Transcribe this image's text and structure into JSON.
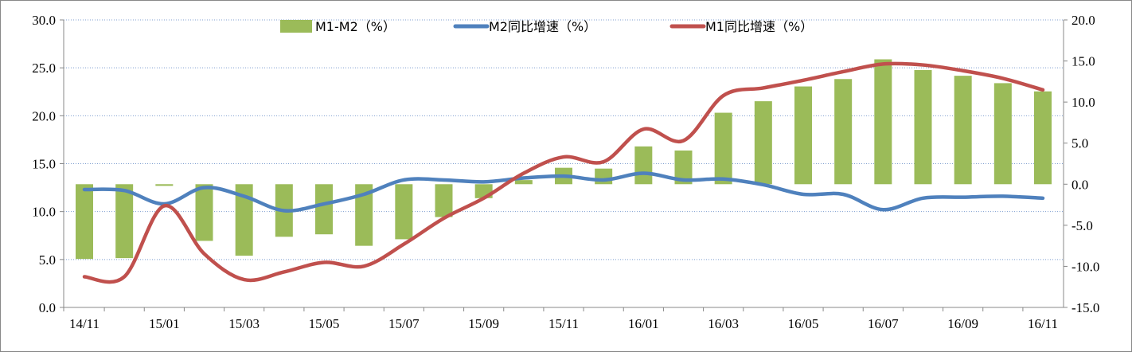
{
  "chart_data": {
    "type": "bar+line",
    "title": "",
    "categories": [
      "14/11",
      "14/12",
      "15/01",
      "15/02",
      "15/03",
      "15/04",
      "15/05",
      "15/06",
      "15/07",
      "15/08",
      "15/09",
      "15/10",
      "15/11",
      "15/12",
      "16/01",
      "16/02",
      "16/03",
      "16/04",
      "16/05",
      "16/06",
      "16/07",
      "16/08",
      "16/09",
      "16/10",
      "16/11"
    ],
    "x_tick_labels": [
      "14/11",
      "15/01",
      "15/03",
      "15/05",
      "15/07",
      "15/09",
      "15/11",
      "16/01",
      "16/03",
      "16/05",
      "16/07",
      "16/09",
      "16/11"
    ],
    "left_axis": {
      "range": [
        0,
        30
      ],
      "ticks": [
        "0.0",
        "5.0",
        "10.0",
        "15.0",
        "20.0",
        "25.0",
        "30.0"
      ]
    },
    "right_axis": {
      "range": [
        -15,
        20
      ],
      "ticks": [
        "-15.0",
        "-10.0",
        "-5.0",
        "0.0",
        "5.0",
        "10.0",
        "15.0",
        "20.0"
      ]
    },
    "grid": true,
    "legend_position": "top",
    "series": [
      {
        "name": "M1-M2（%）",
        "type": "bar",
        "axis": "right",
        "color": "#9bbb59",
        "values": [
          -9.1,
          -9.0,
          -0.2,
          -6.9,
          -8.7,
          -6.4,
          -6.1,
          -7.5,
          -6.7,
          -4.0,
          -1.7,
          0.5,
          2.0,
          1.9,
          4.6,
          4.1,
          8.7,
          10.1,
          11.9,
          12.8,
          15.2,
          13.9,
          13.2,
          12.3,
          11.3
        ]
      },
      {
        "name": "M2同比增速（%）",
        "type": "line",
        "axis": "left",
        "color": "#4f81bd",
        "values": [
          12.3,
          12.2,
          10.8,
          12.5,
          11.6,
          10.1,
          10.8,
          11.8,
          13.3,
          13.3,
          13.1,
          13.5,
          13.7,
          13.3,
          14.0,
          13.3,
          13.4,
          12.8,
          11.8,
          11.8,
          10.2,
          11.4,
          11.5,
          11.6,
          11.4
        ]
      },
      {
        "name": "M1同比增速（%）",
        "type": "line",
        "axis": "left",
        "color": "#c0504d",
        "values": [
          3.2,
          3.2,
          10.6,
          5.6,
          2.9,
          3.7,
          4.7,
          4.3,
          6.6,
          9.3,
          11.4,
          14.0,
          15.7,
          15.2,
          18.6,
          17.4,
          22.1,
          22.9,
          23.7,
          24.6,
          25.4,
          25.3,
          24.7,
          23.9,
          22.7
        ]
      }
    ]
  }
}
